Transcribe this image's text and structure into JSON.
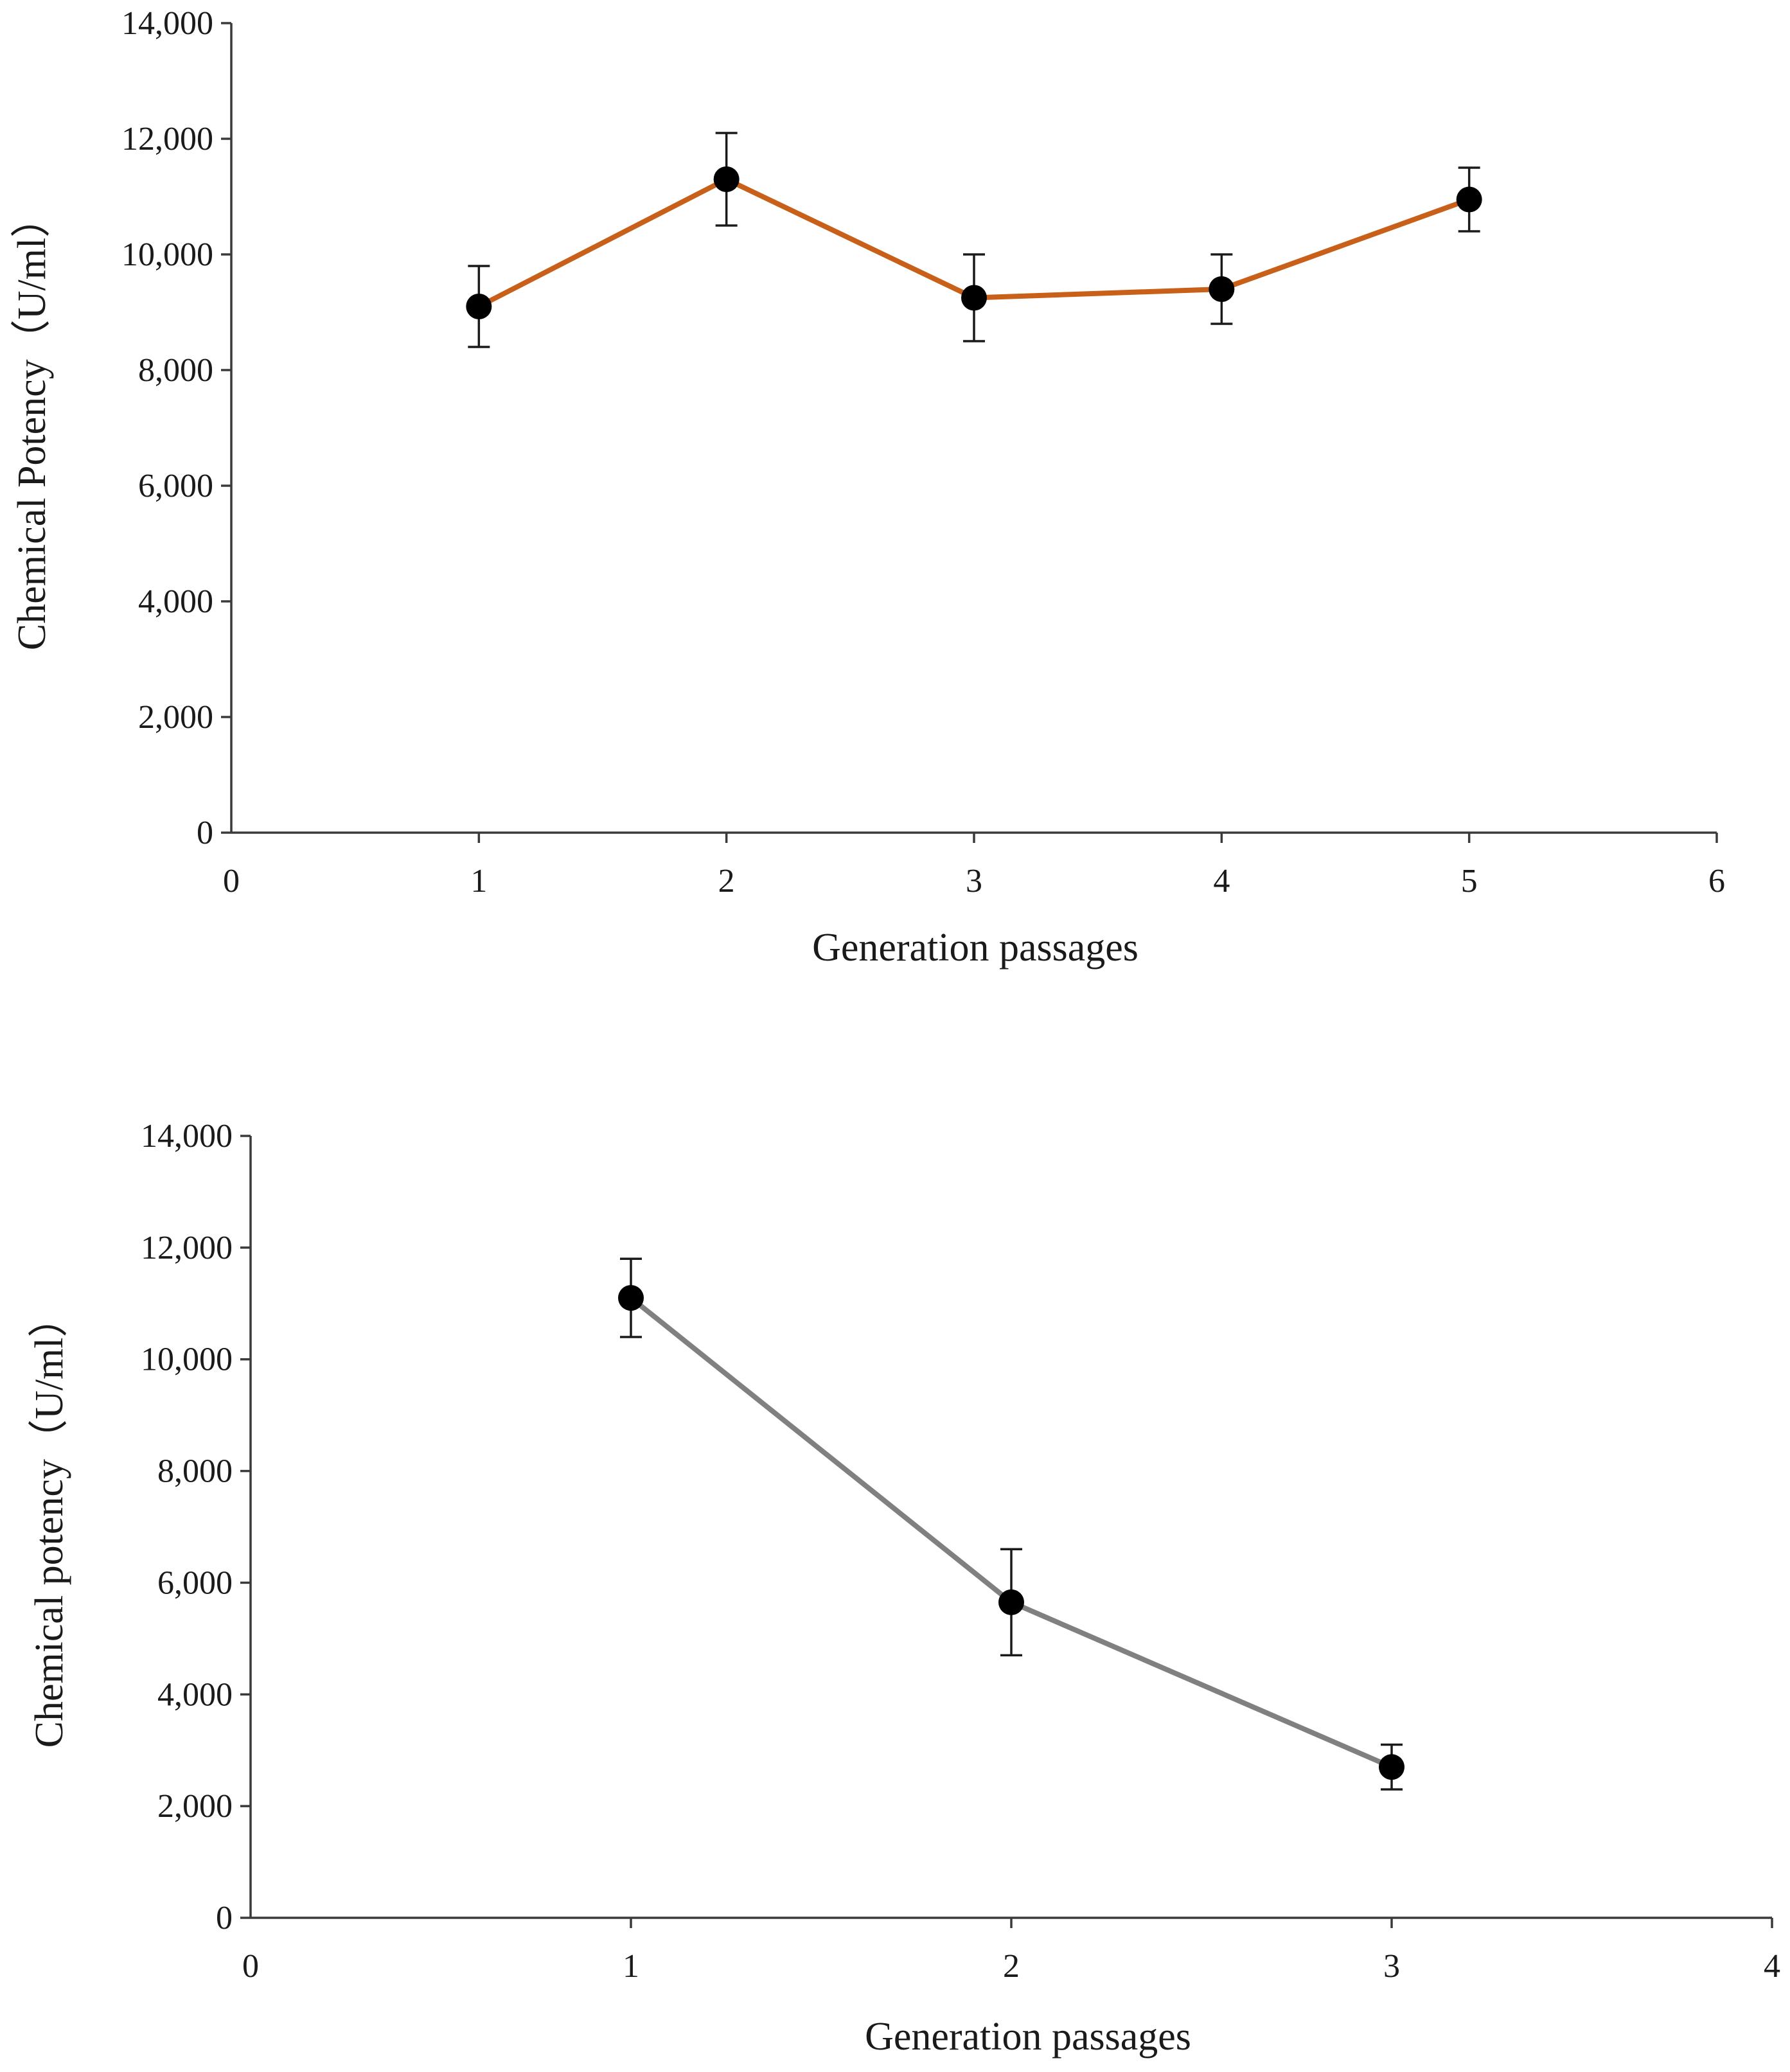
{
  "chart_data": [
    {
      "type": "line",
      "title": "",
      "xlabel": "Generation passages",
      "ylabel": "Chemical Potency（U/ml）",
      "xlim": [
        0,
        6
      ],
      "ylim": [
        0,
        14000
      ],
      "xticks": [
        0,
        1,
        2,
        3,
        4,
        5,
        6
      ],
      "xtick_labels": [
        "0",
        "1",
        "2",
        "3",
        "4",
        "5",
        "6"
      ],
      "yticks": [
        0,
        2000,
        4000,
        6000,
        8000,
        10000,
        12000,
        14000
      ],
      "ytick_labels": [
        "0",
        "2,000",
        "4,000",
        "6,000",
        "8,000",
        "10,000",
        "12,000",
        "14,000"
      ],
      "grid": false,
      "line_color": "#c8601a",
      "marker_color": "#000000",
      "series": [
        {
          "name": "Chemical Potency",
          "x": [
            1,
            2,
            3,
            4,
            5
          ],
          "values": [
            9100,
            11300,
            9250,
            9400,
            10950
          ],
          "error": [
            700,
            800,
            750,
            600,
            550
          ]
        }
      ]
    },
    {
      "type": "line",
      "title": "",
      "xlabel": "Generation passages",
      "ylabel": "Chemical potency（U/ml）",
      "xlim": [
        0,
        4
      ],
      "ylim": [
        0,
        14000
      ],
      "xticks": [
        0,
        1,
        2,
        3,
        4
      ],
      "xtick_labels": [
        "0",
        "1",
        "2",
        "3",
        "4"
      ],
      "yticks": [
        0,
        2000,
        4000,
        6000,
        8000,
        10000,
        12000,
        14000
      ],
      "ytick_labels": [
        "0",
        "2,000",
        "4,000",
        "6,000",
        "8,000",
        "10,000",
        "12,000",
        "14,000"
      ],
      "grid": false,
      "line_color": "#808080",
      "marker_color": "#000000",
      "series": [
        {
          "name": "Chemical potency",
          "x": [
            1,
            2,
            3
          ],
          "values": [
            11100,
            5650,
            2700
          ],
          "error": [
            700,
            950,
            400
          ]
        }
      ]
    }
  ]
}
